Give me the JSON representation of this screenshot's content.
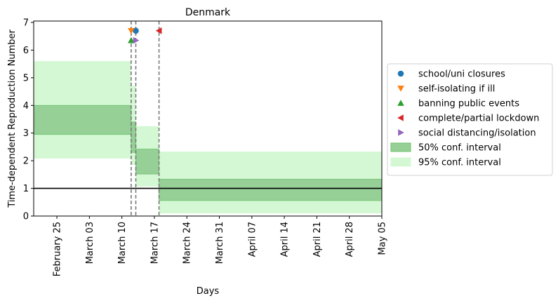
{
  "chart_data": {
    "type": "area",
    "title": "Denmark",
    "xlabel": "Days",
    "ylabel": "Time-dependent Reproduction Number",
    "x_range": [
      "2020-02-20",
      "2020-05-05"
    ],
    "ylim": [
      0,
      7.05
    ],
    "yticks": [
      0,
      1,
      2,
      3,
      4,
      5,
      6,
      7
    ],
    "xticks": [
      {
        "date": "2020-02-25",
        "label": "February 25"
      },
      {
        "date": "2020-03-03",
        "label": "March 03"
      },
      {
        "date": "2020-03-10",
        "label": "March 10"
      },
      {
        "date": "2020-03-17",
        "label": "March 17"
      },
      {
        "date": "2020-03-24",
        "label": "March 24"
      },
      {
        "date": "2020-03-31",
        "label": "March 31"
      },
      {
        "date": "2020-04-07",
        "label": "April 07"
      },
      {
        "date": "2020-04-14",
        "label": "April 14"
      },
      {
        "date": "2020-04-21",
        "label": "April 21"
      },
      {
        "date": "2020-04-28",
        "label": "April 28"
      },
      {
        "date": "2020-05-05",
        "label": "May 05"
      }
    ],
    "reference_line": 1.0,
    "intervention_dates": [
      "2020-03-12",
      "2020-03-13",
      "2020-03-18"
    ],
    "segments": [
      {
        "start": "2020-02-20",
        "end": "2020-03-12",
        "ci50": [
          2.95,
          4.0
        ],
        "ci95": [
          2.08,
          5.6
        ]
      },
      {
        "start": "2020-03-12",
        "end": "2020-03-13",
        "ci50": [
          2.3,
          3.4
        ],
        "ci95": [
          1.85,
          4.7
        ]
      },
      {
        "start": "2020-03-13",
        "end": "2020-03-18",
        "ci50": [
          1.52,
          2.42
        ],
        "ci95": [
          1.07,
          3.25
        ]
      },
      {
        "start": "2020-03-18",
        "end": "2020-05-05",
        "ci50": [
          0.56,
          1.33
        ],
        "ci95": [
          0.1,
          2.33
        ]
      }
    ],
    "interventions": [
      {
        "name": "school/uni closures",
        "date": "2020-03-13",
        "y": 6.7,
        "marker": "circle",
        "color": "#1f77b4"
      },
      {
        "name": "self-isolating if ill",
        "date": "2020-03-12",
        "y": 6.7,
        "marker": "triangle-down",
        "color": "#ff7f0e"
      },
      {
        "name": "banning public events",
        "date": "2020-03-12",
        "y": 6.35,
        "marker": "triangle-up",
        "color": "#2ca02c"
      },
      {
        "name": "complete/partial lockdown",
        "date": "2020-03-18",
        "y": 6.7,
        "marker": "triangle-left",
        "color": "#d62728"
      },
      {
        "name": "social distancing/isolation",
        "date": "2020-03-13",
        "y": 6.35,
        "marker": "triangle-right",
        "color": "#9467bd"
      }
    ],
    "legend": {
      "placement": "center-right-outside",
      "ci50_label": "50% conf. interval",
      "ci95_label": "95% conf. interval"
    },
    "colors": {
      "ci50_fill": "#96d096",
      "ci50_edge": "#6cbf6c",
      "ci95_fill": "#d3f8d3",
      "reference_line": "#000000",
      "intervention_line": "#7a7a7a"
    }
  }
}
